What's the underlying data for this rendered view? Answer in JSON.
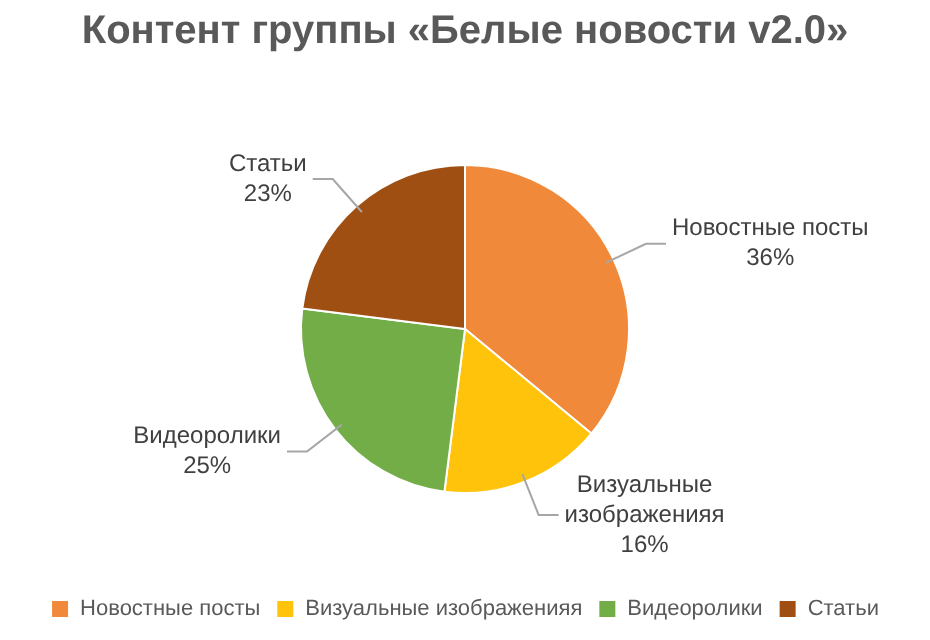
{
  "chart_data": {
    "type": "pie",
    "title": "Контент группы «Белые новости v2.0»",
    "categories": [
      "Новостные посты",
      "Визуальные изображенияя",
      "Видеоролики",
      "Статьи"
    ],
    "values": [
      36,
      16,
      25,
      23
    ],
    "colors": [
      "#f08a3a",
      "#fec30a",
      "#72ad48",
      "#a04f13"
    ],
    "value_labels": [
      "36%",
      "16%",
      "25%",
      "23%"
    ],
    "legend": "bottom"
  }
}
